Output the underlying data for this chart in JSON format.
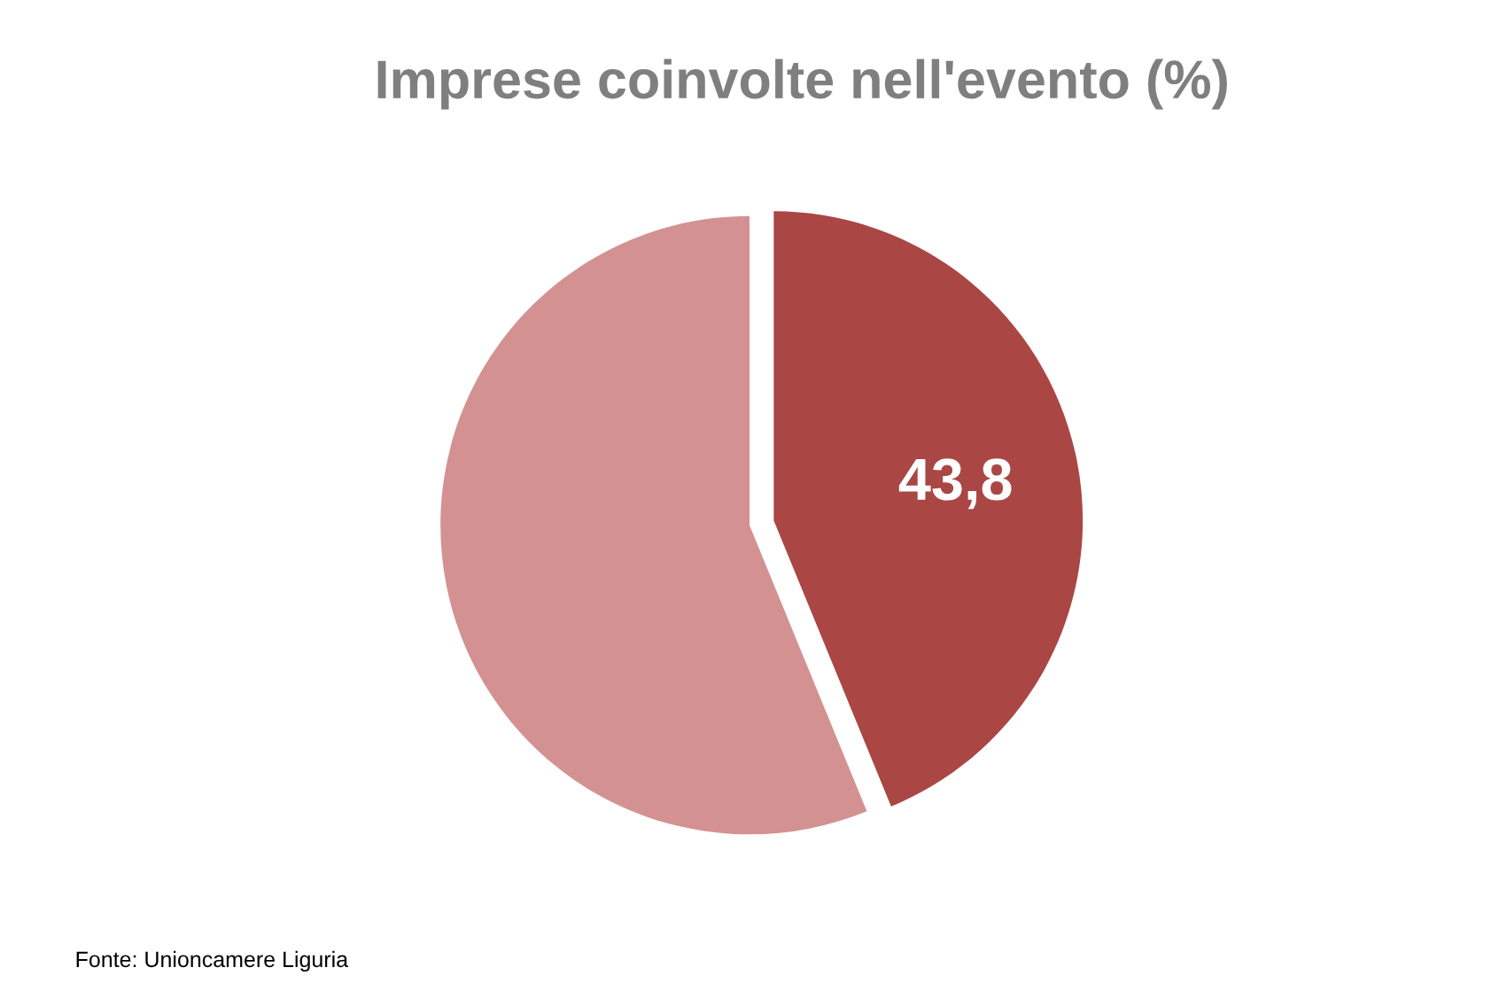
{
  "chart_data": {
    "type": "pie",
    "title": "Imprese coinvolte nell'evento (%)",
    "categories": [
      null,
      null
    ],
    "values": [
      43.8,
      56.2
    ],
    "colors": [
      "#aa4644",
      "#d39291"
    ],
    "value_labels": [
      "43,8",
      null
    ],
    "annotations": [
      "Fonte: Unioncamere Liguria"
    ]
  }
}
